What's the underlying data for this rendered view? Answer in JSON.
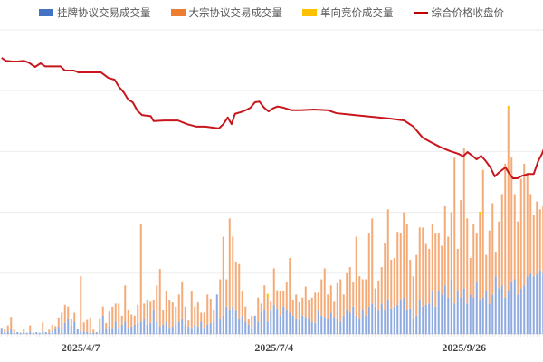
{
  "chart_data": {
    "type": "bar+line",
    "title": "",
    "xlabel": "",
    "ylabel": "",
    "grid": true,
    "legend_position": "top",
    "x_tick_labels": [
      {
        "index": 25,
        "label": "2025/4/7"
      },
      {
        "index": 86,
        "label": "2025/7/4"
      },
      {
        "index": 146,
        "label": "2025/9/26"
      }
    ],
    "bar_ylim": [
      0,
      500
    ],
    "line_ylim": [
      0,
      500
    ],
    "series": [
      {
        "name": "挂牌协议交易成交量",
        "kind": "bar",
        "color": "#4472c4",
        "values": [
          10,
          3,
          4,
          8,
          2,
          3,
          2,
          3,
          2,
          4,
          2,
          3,
          2,
          4,
          3,
          2,
          5,
          8,
          12,
          10,
          18,
          25,
          14,
          20,
          8,
          5,
          4,
          3,
          2,
          2,
          3,
          6,
          30,
          8,
          12,
          10,
          20,
          10,
          15,
          20,
          10,
          12,
          15,
          18,
          20,
          25,
          15,
          18,
          40,
          20,
          12,
          15,
          20,
          10,
          12,
          15,
          20,
          25,
          15,
          12,
          10,
          15,
          12,
          20,
          10,
          15,
          18,
          20,
          65,
          25,
          30,
          45,
          40,
          45,
          38,
          25,
          30,
          20,
          15,
          10,
          30,
          20,
          35,
          40,
          20,
          38,
          48,
          42,
          30,
          45,
          40,
          35,
          30,
          25,
          22,
          30,
          28,
          26,
          20,
          18,
          38,
          30,
          28,
          25,
          35,
          28,
          24,
          20,
          30,
          40,
          35,
          45,
          30,
          25,
          40,
          30,
          45,
          50,
          45,
          38,
          50,
          40,
          55,
          42,
          45,
          48,
          55,
          60,
          40,
          42,
          25,
          30,
          55,
          45,
          48,
          50,
          70,
          45,
          70,
          65,
          80,
          60,
          90,
          50,
          70,
          60,
          75,
          50,
          65,
          60,
          85,
          55,
          60,
          70,
          50,
          65,
          95,
          75,
          80,
          60,
          70,
          85,
          90,
          65,
          75,
          80,
          95,
          100,
          95,
          98,
          105,
          100
        ]
      },
      {
        "name": "大宗协议交易成交量",
        "kind": "bar",
        "color": "#ed7d31",
        "values": [
          0,
          5,
          10,
          20,
          5,
          0,
          0,
          5,
          0,
          10,
          0,
          0,
          0,
          15,
          0,
          5,
          10,
          5,
          15,
          25,
          30,
          20,
          10,
          15,
          0,
          90,
          15,
          20,
          25,
          5,
          0,
          20,
          15,
          10,
          25,
          35,
          30,
          40,
          15,
          60,
          30,
          20,
          15,
          30,
          160,
          25,
          40,
          35,
          15,
          60,
          95,
          25,
          50,
          45,
          40,
          30,
          45,
          60,
          30,
          10,
          60,
          30,
          40,
          15,
          25,
          50,
          40,
          20,
          0,
          65,
          130,
          45,
          150,
          115,
          80,
          90,
          40,
          25,
          10,
          20,
          0,
          40,
          15,
          40,
          40,
          15,
          60,
          30,
          40,
          25,
          45,
          90,
          25,
          40,
          30,
          30,
          50,
          30,
          40,
          50,
          30,
          60,
          80,
          40,
          45,
          25,
          60,
          70,
          35,
          60,
          75,
          40,
          130,
          70,
          50,
          60,
          120,
          140,
          30,
          50,
          60,
          110,
          150,
          80,
          80,
          120,
          110,
          140,
          140,
          80,
          70,
          100,
          120,
          130,
          100,
          90,
          110,
          120,
          95,
          80,
          130,
          100,
          110,
          240,
          70,
          160,
          230,
          140,
          60,
          120,
          80,
          140,
          210,
          60,
          120,
          150,
          40,
          110,
          150,
          220,
          300,
          205,
          140,
          120,
          180,
          200,
          170,
          130,
          100,
          120,
          100,
          110
        ]
      },
      {
        "name": "单向竞价成交量",
        "kind": "bar",
        "color": "#ffc000",
        "points": [
          [
            84,
            6
          ],
          [
            151,
            6
          ],
          [
            160,
            5
          ]
        ]
      },
      {
        "name": "综合价格收盘价",
        "kind": "line",
        "color": "#c00000",
        "points": [
          [
            0,
            454
          ],
          [
            1.4,
            449
          ],
          [
            3.4,
            448
          ],
          [
            5.1,
            448
          ],
          [
            7.1,
            449
          ],
          [
            8.6,
            446
          ],
          [
            10.6,
            439
          ],
          [
            12.3,
            445
          ],
          [
            13.7,
            440
          ],
          [
            18.6,
            440
          ],
          [
            20,
            433
          ],
          [
            22.9,
            433
          ],
          [
            24.3,
            430
          ],
          [
            31.4,
            430
          ],
          [
            33.7,
            421
          ],
          [
            35.7,
            418
          ],
          [
            37.1,
            406
          ],
          [
            38.6,
            397
          ],
          [
            40,
            385
          ],
          [
            41.4,
            381
          ],
          [
            42.9,
            367
          ],
          [
            44.3,
            360
          ],
          [
            47.1,
            358
          ],
          [
            48,
            350
          ],
          [
            51.4,
            351
          ],
          [
            55.7,
            351
          ],
          [
            58.6,
            345
          ],
          [
            61.4,
            341
          ],
          [
            64.3,
            341
          ],
          [
            68.6,
            338
          ],
          [
            70,
            345
          ],
          [
            71.4,
            356
          ],
          [
            72.6,
            345
          ],
          [
            73.7,
            362
          ],
          [
            75.7,
            365
          ],
          [
            77.1,
            368
          ],
          [
            78.6,
            372
          ],
          [
            80,
            381
          ],
          [
            81.4,
            382
          ],
          [
            82.9,
            372
          ],
          [
            84.3,
            366
          ],
          [
            85.7,
            371
          ],
          [
            87.1,
            374
          ],
          [
            89.1,
            372
          ],
          [
            91.4,
            368
          ],
          [
            94.3,
            368
          ],
          [
            98.6,
            369
          ],
          [
            102.9,
            368
          ],
          [
            105.7,
            363
          ],
          [
            111.4,
            360
          ],
          [
            117.1,
            357
          ],
          [
            122.9,
            354
          ],
          [
            127.1,
            351
          ],
          [
            130,
            341
          ],
          [
            132.9,
            323
          ],
          [
            135.7,
            315
          ],
          [
            138.6,
            307
          ],
          [
            141.4,
            301
          ],
          [
            144.3,
            296
          ],
          [
            145.7,
            292
          ],
          [
            147.1,
            299
          ],
          [
            148.6,
            293
          ],
          [
            150,
            287
          ],
          [
            151.4,
            293
          ],
          [
            152.9,
            284
          ],
          [
            154.3,
            274
          ],
          [
            155.7,
            259
          ],
          [
            157.1,
            266
          ],
          [
            159.1,
            274
          ],
          [
            160,
            266
          ],
          [
            161.4,
            256
          ],
          [
            162.9,
            256
          ],
          [
            164.3,
            260
          ],
          [
            166.3,
            263
          ],
          [
            168,
            263
          ],
          [
            169.4,
            284
          ],
          [
            170.6,
            296
          ],
          [
            171.4,
            307
          ]
        ]
      }
    ]
  }
}
